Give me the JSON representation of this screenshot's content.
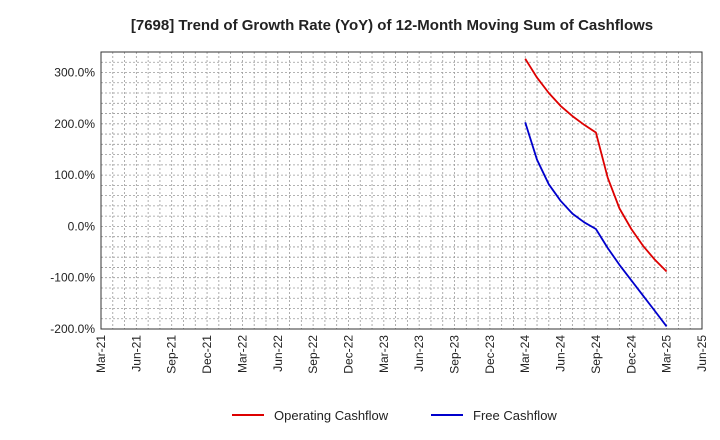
{
  "chart_data": {
    "type": "line",
    "title": "[7698]  Trend of Growth Rate (YoY) of 12-Month Moving Sum of Cashflows",
    "xlabel": "",
    "ylabel": "",
    "x_ticks": [
      "Mar-21",
      "Jun-21",
      "Sep-21",
      "Dec-21",
      "Mar-22",
      "Jun-22",
      "Sep-22",
      "Dec-22",
      "Mar-23",
      "Jun-23",
      "Sep-23",
      "Dec-23",
      "Mar-24",
      "Jun-24",
      "Sep-24",
      "Dec-24",
      "Mar-25",
      "Jun-25"
    ],
    "y_ticks": [
      "300.0%",
      "200.0%",
      "100.0%",
      "0.0%",
      "-100.0%",
      "-200.0%"
    ],
    "y_tick_values": [
      300,
      200,
      100,
      0,
      -100,
      -200
    ],
    "ylim": [
      -200,
      340
    ],
    "xlim": [
      "Mar-21",
      "Jun-25"
    ],
    "grid": true,
    "legend_position": "bottom",
    "x": [
      "Mar-24",
      "Apr-24",
      "May-24",
      "Jun-24",
      "Jul-24",
      "Aug-24",
      "Sep-24",
      "Oct-24",
      "Nov-24",
      "Dec-24",
      "Jan-25",
      "Feb-25",
      "Mar-25"
    ],
    "series": [
      {
        "name": "Operating Cashflow",
        "color": "#dd0000",
        "values": [
          327,
          290,
          260,
          235,
          215,
          198,
          183,
          95,
          35,
          -5,
          -38,
          -65,
          -88
        ]
      },
      {
        "name": "Free Cashflow",
        "color": "#0000cc",
        "values": [
          203,
          130,
          82,
          50,
          25,
          8,
          -5,
          -42,
          -75,
          -105,
          -135,
          -165,
          -195
        ]
      }
    ]
  }
}
